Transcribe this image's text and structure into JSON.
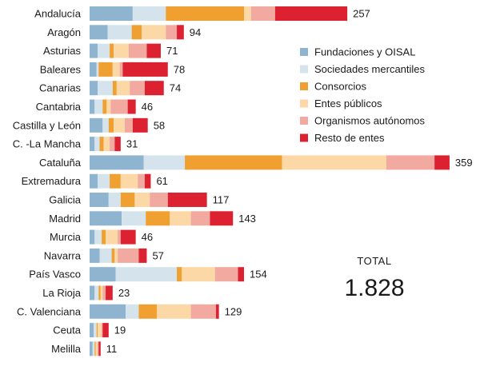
{
  "chart_data": {
    "type": "bar",
    "orientation": "horizontal",
    "stacked": true,
    "categories": [
      "Andalucía",
      "Aragón",
      "Asturias",
      "Baleares",
      "Canarias",
      "Cantabria",
      "Castilla y León",
      "C. -La Mancha",
      "Cataluña",
      "Extremadura",
      "Galicia",
      "Madrid",
      "Murcia",
      "Navarra",
      "País Vasco",
      "La Rioja",
      "C. Valenciana",
      "Ceuta",
      "Melilla"
    ],
    "totals": [
      257,
      94,
      71,
      78,
      74,
      46,
      58,
      31,
      359,
      61,
      117,
      143,
      46,
      57,
      154,
      23,
      129,
      19,
      11
    ],
    "series": [
      {
        "name": "Fundaciones y OISAL",
        "color": "#8fb4cf",
        "values": [
          43,
          18,
          8,
          7,
          8,
          5,
          13,
          5,
          54,
          8,
          19,
          32,
          5,
          10,
          26,
          5,
          36,
          4,
          3
        ]
      },
      {
        "name": "Sociedades mercantiles",
        "color": "#d5e4ec",
        "values": [
          33,
          24,
          12,
          2,
          15,
          8,
          6,
          5,
          41,
          12,
          12,
          24,
          7,
          12,
          61,
          4,
          13,
          3,
          2
        ]
      },
      {
        "name": "Consorcios",
        "color": "#f0a030",
        "values": [
          78,
          10,
          4,
          14,
          4,
          4,
          5,
          4,
          97,
          11,
          14,
          24,
          4,
          3,
          5,
          2,
          18,
          1,
          1
        ]
      },
      {
        "name": "Entes públicos",
        "color": "#fbd8a6",
        "values": [
          7,
          24,
          15,
          7,
          13,
          4,
          11,
          6,
          104,
          17,
          15,
          21,
          12,
          3,
          33,
          2,
          34,
          4,
          2
        ]
      },
      {
        "name": "Organismos autónomos",
        "color": "#f2aaa0",
        "values": [
          24,
          11,
          18,
          3,
          15,
          17,
          8,
          5,
          48,
          7,
          18,
          19,
          3,
          21,
          23,
          3,
          25,
          1,
          1
        ]
      },
      {
        "name": "Resto de entes",
        "color": "#dc2230",
        "values": [
          72,
          7,
          14,
          45,
          19,
          8,
          15,
          6,
          15,
          6,
          39,
          23,
          15,
          8,
          6,
          7,
          3,
          6,
          2
        ]
      }
    ],
    "legend_position": "right",
    "grid": false,
    "total_label": "TOTAL",
    "total_value": "1.828"
  }
}
